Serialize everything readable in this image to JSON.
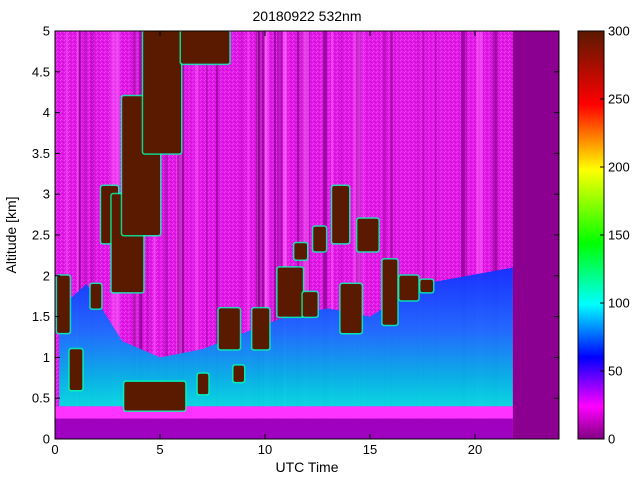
{
  "chart_data": {
    "type": "heatmap",
    "title": "20180922 532nm",
    "xlabel": "UTC Time",
    "ylabel": "Altitude [km]",
    "xlim": [
      0,
      24
    ],
    "ylim": [
      0,
      5
    ],
    "x_ticks": [
      "0",
      "5",
      "10",
      "15",
      "20"
    ],
    "y_ticks": [
      "0",
      "0.5",
      "1",
      "1.5",
      "2",
      "2.5",
      "3",
      "3.5",
      "4",
      "4.5",
      "5"
    ],
    "colorbar": {
      "range": [
        0,
        300
      ],
      "ticks": [
        "0",
        "50",
        "100",
        "150",
        "200",
        "250",
        "300"
      ],
      "colormap": [
        "#800080",
        "#ff00ff",
        "#0000ff",
        "#00ffff",
        "#00ff00",
        "#ffff00",
        "#ff0000",
        "#5a1a00"
      ]
    },
    "data_end_hour": 21.8,
    "surface_layer_km": [
      0.25,
      0.4
    ],
    "aerosol_layer_top_km": [
      [
        0.2,
        1.6
      ],
      [
        1.5,
        1.9
      ],
      [
        3.2,
        1.2
      ],
      [
        5,
        1.0
      ],
      [
        7,
        1.1
      ],
      [
        9,
        1.3
      ],
      [
        11,
        1.5
      ],
      [
        13,
        1.6
      ],
      [
        15,
        1.5
      ],
      [
        17.5,
        1.9
      ],
      [
        21.8,
        2.1
      ]
    ],
    "cloud_layers": [
      {
        "hours": [
          0.1,
          0.7
        ],
        "altitude_km": [
          1.3,
          2.0
        ]
      },
      {
        "hours": [
          0.7,
          1.3
        ],
        "altitude_km": [
          0.6,
          1.1
        ]
      },
      {
        "hours": [
          1.7,
          2.2
        ],
        "altitude_km": [
          1.6,
          1.9
        ]
      },
      {
        "hours": [
          2.2,
          3.0
        ],
        "altitude_km": [
          2.4,
          3.1
        ]
      },
      {
        "hours": [
          2.7,
          4.2
        ],
        "altitude_km": [
          1.8,
          3.0
        ]
      },
      {
        "hours": [
          3.2,
          5.0
        ],
        "altitude_km": [
          2.5,
          4.2
        ]
      },
      {
        "hours": [
          4.2,
          6.0
        ],
        "altitude_km": [
          3.5,
          5.0
        ]
      },
      {
        "hours": [
          6.0,
          8.3
        ],
        "altitude_km": [
          4.6,
          5.0
        ]
      },
      {
        "hours": [
          3.3,
          6.2
        ],
        "altitude_km": [
          0.35,
          0.7
        ]
      },
      {
        "hours": [
          6.8,
          7.3
        ],
        "altitude_km": [
          0.55,
          0.8
        ]
      },
      {
        "hours": [
          8.5,
          9.0
        ],
        "altitude_km": [
          0.7,
          0.9
        ]
      },
      {
        "hours": [
          7.8,
          8.8
        ],
        "altitude_km": [
          1.1,
          1.6
        ]
      },
      {
        "hours": [
          9.4,
          10.2
        ],
        "altitude_km": [
          1.1,
          1.6
        ]
      },
      {
        "hours": [
          10.6,
          11.8
        ],
        "altitude_km": [
          1.5,
          2.1
        ]
      },
      {
        "hours": [
          11.8,
          12.5
        ],
        "altitude_km": [
          1.5,
          1.8
        ]
      },
      {
        "hours": [
          11.4,
          12.0
        ],
        "altitude_km": [
          2.2,
          2.4
        ]
      },
      {
        "hours": [
          12.3,
          12.9
        ],
        "altitude_km": [
          2.3,
          2.6
        ]
      },
      {
        "hours": [
          13.2,
          14.0
        ],
        "altitude_km": [
          2.4,
          3.1
        ]
      },
      {
        "hours": [
          13.6,
          14.6
        ],
        "altitude_km": [
          1.3,
          1.9
        ]
      },
      {
        "hours": [
          14.4,
          15.4
        ],
        "altitude_km": [
          2.3,
          2.7
        ]
      },
      {
        "hours": [
          15.6,
          16.3
        ],
        "altitude_km": [
          1.4,
          2.2
        ]
      },
      {
        "hours": [
          16.4,
          17.3
        ],
        "altitude_km": [
          1.7,
          2.0
        ]
      },
      {
        "hours": [
          17.4,
          18.0
        ],
        "altitude_km": [
          1.8,
          1.95
        ]
      }
    ]
  }
}
